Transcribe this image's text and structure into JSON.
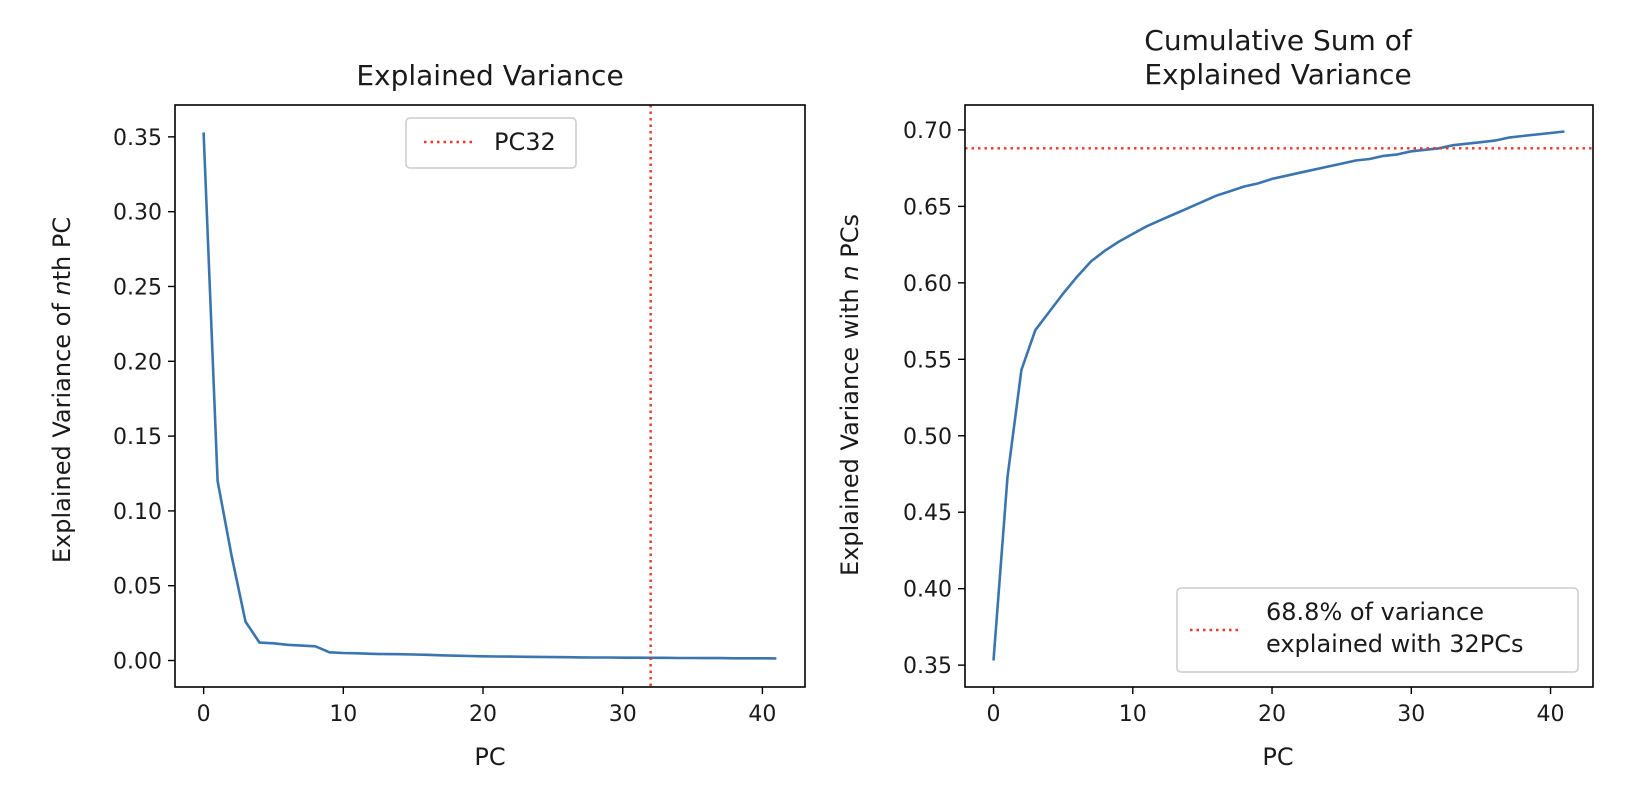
{
  "chart_data": [
    {
      "type": "line",
      "title": "Explained Variance",
      "xlabel": "PC",
      "ylabel_prefix": "Explained Variance of ",
      "ylabel_italic": "n",
      "ylabel_suffix": "th PC",
      "xlim": [
        -2.05,
        43.05
      ],
      "ylim": [
        -0.0177,
        0.3713
      ],
      "xticks": [
        0,
        10,
        20,
        30,
        40
      ],
      "yticks": [
        0.0,
        0.05,
        0.1,
        0.15,
        0.2,
        0.25,
        0.3,
        0.35
      ],
      "grid": false,
      "legend": {
        "placement": "top-center",
        "entries": [
          {
            "label": "PC32",
            "style": "dotted",
            "color": "#e8372c"
          }
        ]
      },
      "series": [
        {
          "color": "#3b75af",
          "x": [
            0,
            1,
            2,
            3,
            4,
            5,
            6,
            7,
            8,
            9,
            10,
            11,
            12,
            13,
            14,
            15,
            16,
            17,
            18,
            19,
            20,
            21,
            22,
            23,
            24,
            25,
            26,
            27,
            28,
            29,
            30,
            31,
            32,
            33,
            34,
            35,
            36,
            37,
            38,
            39,
            40,
            41
          ],
          "y": [
            0.353,
            0.12,
            0.07,
            0.026,
            0.012,
            0.0115,
            0.0105,
            0.01,
            0.0095,
            0.0055,
            0.005,
            0.0048,
            0.0045,
            0.0043,
            0.0042,
            0.004,
            0.0038,
            0.0035,
            0.0032,
            0.003,
            0.0028,
            0.0027,
            0.0026,
            0.0025,
            0.0024,
            0.0023,
            0.0022,
            0.0021,
            0.002,
            0.002,
            0.0019,
            0.0019,
            0.0018,
            0.0018,
            0.0017,
            0.0017,
            0.0016,
            0.0016,
            0.0015,
            0.0015,
            0.0015,
            0.0014
          ]
        }
      ],
      "vline": {
        "x": 32,
        "color": "#e8372c",
        "style": "dotted"
      }
    },
    {
      "type": "line",
      "title_lines": [
        "Cumulative Sum of",
        "Explained Variance"
      ],
      "xlabel": "PC",
      "ylabel_prefix": "Explained Variance with ",
      "ylabel_italic": "n",
      "ylabel_suffix": " PCs",
      "xlim": [
        -2.05,
        43.05
      ],
      "ylim": [
        0.3357,
        0.7163
      ],
      "xticks": [
        0,
        10,
        20,
        30,
        40
      ],
      "yticks": [
        0.35,
        0.4,
        0.45,
        0.5,
        0.55,
        0.6,
        0.65,
        0.7
      ],
      "grid": false,
      "legend": {
        "placement": "lower-right",
        "entries": [
          {
            "label_lines": [
              "68.8% of variance",
              "explained with 32PCs"
            ],
            "style": "dotted",
            "color": "#e8372c"
          }
        ]
      },
      "series": [
        {
          "color": "#3b75af",
          "x": [
            0,
            1,
            2,
            3,
            4,
            5,
            6,
            7,
            8,
            9,
            10,
            11,
            12,
            13,
            14,
            15,
            16,
            17,
            18,
            19,
            20,
            21,
            22,
            23,
            24,
            25,
            26,
            27,
            28,
            29,
            30,
            31,
            32,
            33,
            34,
            35,
            36,
            37,
            38,
            39,
            40,
            41
          ],
          "y": [
            0.353,
            0.473,
            0.543,
            0.569,
            0.581,
            0.593,
            0.604,
            0.614,
            0.621,
            0.627,
            0.632,
            0.637,
            0.641,
            0.645,
            0.649,
            0.653,
            0.657,
            0.66,
            0.663,
            0.665,
            0.668,
            0.67,
            0.672,
            0.674,
            0.676,
            0.678,
            0.68,
            0.681,
            0.683,
            0.684,
            0.686,
            0.687,
            0.688,
            0.69,
            0.691,
            0.692,
            0.693,
            0.695,
            0.696,
            0.697,
            0.698,
            0.699
          ]
        }
      ],
      "hline": {
        "y": 0.688,
        "color": "#e8372c",
        "style": "dotted"
      }
    }
  ]
}
